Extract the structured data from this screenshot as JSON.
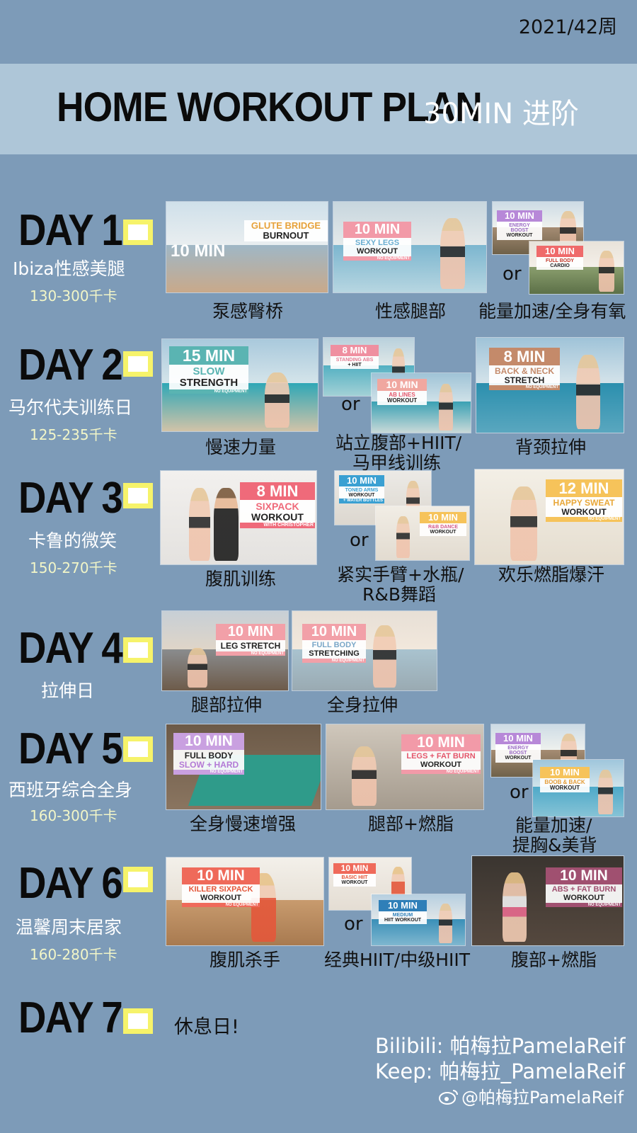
{
  "week": "2021/42周",
  "banner": {
    "title": "HOME WORKOUT PLAN",
    "subtitle": "30MIN 进阶"
  },
  "days": [
    {
      "title": "DAY 1",
      "subtitle": "Ibiza性感美腿",
      "kcal": "130-300千卡",
      "thumbs": [
        {
          "minutes": "10 MIN",
          "line1": "GLUTE BRIDGE",
          "line2": "BURNOUT"
        },
        {
          "minutes": "10 MIN",
          "line1": "SEXY LEGS",
          "line2": "WORKOUT",
          "note": "NO EQUIPMENT"
        },
        {
          "minutes": "10 MIN",
          "line1": "ENERGY BOOST",
          "line2": "WORKOUT"
        },
        {
          "minutes": "10 MIN",
          "line1": "FULL BODY",
          "line2": "CARDIO"
        }
      ],
      "captions": [
        "泵感臀桥",
        "性感腿部",
        "能量加速/全身有氧"
      ]
    },
    {
      "title": "DAY 2",
      "subtitle": "马尔代夫训练日",
      "kcal": "125-235千卡",
      "thumbs": [
        {
          "minutes": "15 MIN",
          "line1": "SLOW",
          "line2": "STRENGTH",
          "note": "NO EQUIPMENT"
        },
        {
          "minutes": "8 MIN",
          "line1": "STANDING ABS",
          "line2": "+ HIIT"
        },
        {
          "minutes": "10 MIN",
          "line1": "AB LINES",
          "line2": "WORKOUT"
        },
        {
          "minutes": "8 MIN",
          "line1": "BACK & NECK",
          "line2": "STRETCH",
          "note": "NO EQUIPMENT"
        }
      ],
      "captions": [
        "慢速力量",
        "站立腹部+HIIT/",
        "马甲线训练",
        "背颈拉伸"
      ]
    },
    {
      "title": "DAY 3",
      "subtitle": "卡鲁的微笑",
      "kcal": "150-270千卡",
      "thumbs": [
        {
          "minutes": "8 MIN",
          "line1": "SIXPACK",
          "line2": "WORKOUT",
          "note": "WITH CHRISTOPHER"
        },
        {
          "minutes": "10 MIN",
          "line1": "TONED ARMS",
          "line2": "WORKOUT",
          "note": "+ WATER BOTTLES"
        },
        {
          "minutes": "10 MIN",
          "line1": "R&B DANCE",
          "line2": "WORKOUT"
        },
        {
          "minutes": "12 MIN",
          "line1": "HAPPY SWEAT",
          "line2": "WORKOUT",
          "note": "NO EQUIPMENT"
        }
      ],
      "captions": [
        "腹肌训练",
        "紧实手臂+水瓶/",
        "R&B舞蹈",
        "欢乐燃脂爆汗"
      ]
    },
    {
      "title": "DAY 4",
      "subtitle": "拉伸日",
      "kcal": "",
      "thumbs": [
        {
          "minutes": "10 MIN",
          "line1": "LEG STRETCH",
          "line2": "",
          "note": "NO EQUIPMENT"
        },
        {
          "minutes": "10 MIN",
          "line1": "FULL BODY",
          "line2": "STRETCHING",
          "note": "NO EQUIPMENT"
        }
      ],
      "captions": [
        "腿部拉伸",
        "全身拉伸"
      ]
    },
    {
      "title": "DAY 5",
      "subtitle": "西班牙综合全身",
      "kcal": "160-300千卡",
      "thumbs": [
        {
          "minutes": "10 MIN",
          "line1": "FULL BODY",
          "line2": "SLOW + HARD",
          "note": "NO EQUIPMENT"
        },
        {
          "minutes": "10 MIN",
          "line1": "LEGS + FAT BURN",
          "line2": "WORKOUT",
          "note": "NO EQUIPMENT"
        },
        {
          "minutes": "10 MIN",
          "line1": "ENERGY BOOST",
          "line2": "WORKOUT"
        },
        {
          "minutes": "10 MIN",
          "line1": "BOOB & BACK",
          "line2": "WORKOUT"
        }
      ],
      "captions": [
        "全身慢速增强",
        "腿部+燃脂",
        "能量加速/",
        "提胸&美背"
      ]
    },
    {
      "title": "DAY 6",
      "subtitle": "温馨周末居家",
      "kcal": "160-280千卡",
      "thumbs": [
        {
          "minutes": "10 MIN",
          "line1": "KILLER SIXPACK",
          "line2": "WORKOUT",
          "note": "NO EQUIPMENT"
        },
        {
          "minutes": "10 MIN",
          "line1": "BASIC HIIT",
          "line2": "WORKOUT"
        },
        {
          "minutes": "10 MIN",
          "line1": "MEDIUM",
          "line2": "HIIT WORKOUT"
        },
        {
          "minutes": "10 MIN",
          "line1": "ABS + FAT BURN",
          "line2": "WORKOUT",
          "note": "NO EQUIPMENT"
        }
      ],
      "captions": [
        "腹肌杀手",
        "经典HIIT/中级HIIT",
        "腹部+燃脂"
      ]
    },
    {
      "title": "DAY 7",
      "rest": "休息日!"
    }
  ],
  "or_label": "or",
  "credits": {
    "bilibili": "Bilibili: 帕梅拉PamelaReif",
    "keep": "Keep: 帕梅拉_PamelaReif",
    "weibo": "@帕梅拉PamelaReif"
  },
  "colors": {
    "background": "#7d9bb8",
    "banner": "#aec6d8",
    "checkbox_border": "#f6f36a",
    "min_badges": [
      "#f29aa8",
      "#f6c35a",
      "#b788d8",
      "#a05070"
    ]
  }
}
